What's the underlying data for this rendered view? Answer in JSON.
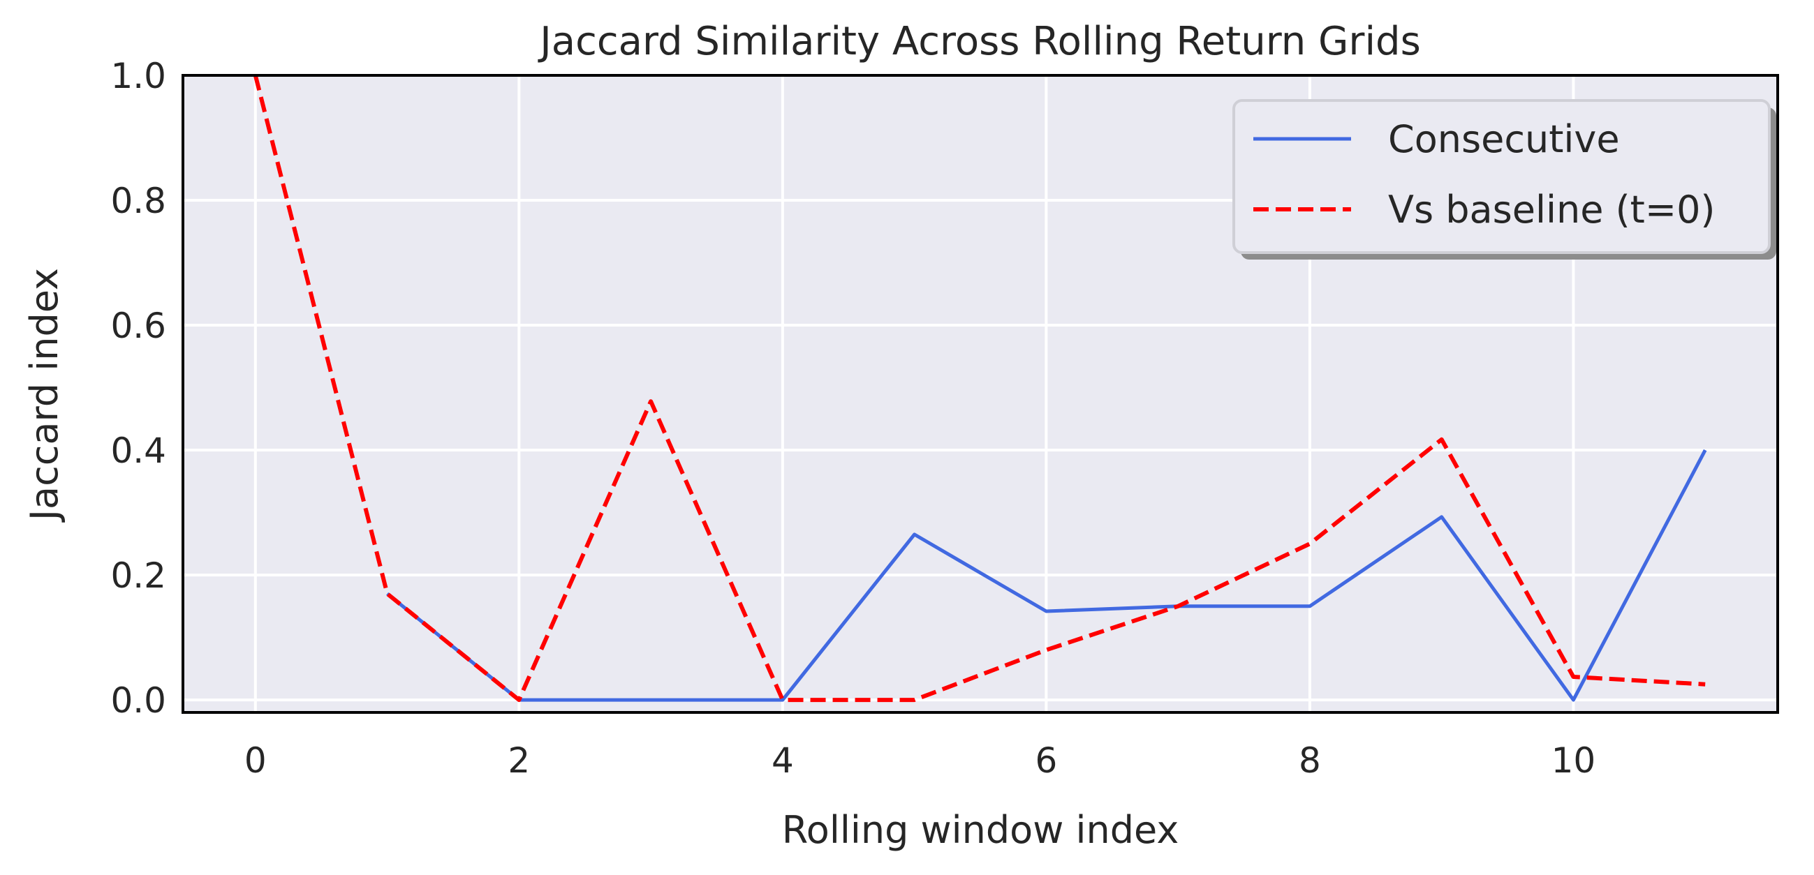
{
  "chart_data": {
    "type": "line",
    "title": "Jaccard Similarity Across Rolling Return Grids",
    "xlabel": "Rolling window index",
    "ylabel": "Jaccard index",
    "x": [
      0,
      1,
      2,
      3,
      4,
      5,
      6,
      7,
      8,
      9,
      10,
      11
    ],
    "xlim": [
      -0.55,
      11.55
    ],
    "ylim": [
      -0.02,
      1.0
    ],
    "xticks": [
      0,
      2,
      4,
      6,
      8,
      10
    ],
    "xtick_labels": [
      "0",
      "2",
      "4",
      "6",
      "8",
      "10"
    ],
    "yticks": [
      0.0,
      0.2,
      0.4,
      0.6,
      0.8,
      1.0
    ],
    "ytick_labels": [
      "0.0",
      "0.2",
      "0.4",
      "0.6",
      "0.8",
      "1.0"
    ],
    "grid": true,
    "legend_position": "top-right",
    "background_color": "#eaeaf2",
    "series": [
      {
        "name": "Consecutive",
        "x": [
          1,
          2,
          3,
          4,
          5,
          6,
          7,
          8,
          9,
          10,
          11
        ],
        "values": [
          0.17,
          0.0,
          0.0,
          0.0,
          0.265,
          0.142,
          0.15,
          0.15,
          0.293,
          0.0,
          0.4
        ],
        "color": "#4169e1",
        "style": "solid"
      },
      {
        "name": "Vs baseline (t=0)",
        "x": [
          0,
          1,
          2,
          3,
          4,
          5,
          6,
          7,
          8,
          9,
          10,
          11
        ],
        "values": [
          1.0,
          0.17,
          0.0,
          0.478,
          0.0,
          0.0,
          0.08,
          0.15,
          0.25,
          0.417,
          0.037,
          0.025
        ],
        "color": "#ff0000",
        "style": "dashed"
      }
    ]
  }
}
